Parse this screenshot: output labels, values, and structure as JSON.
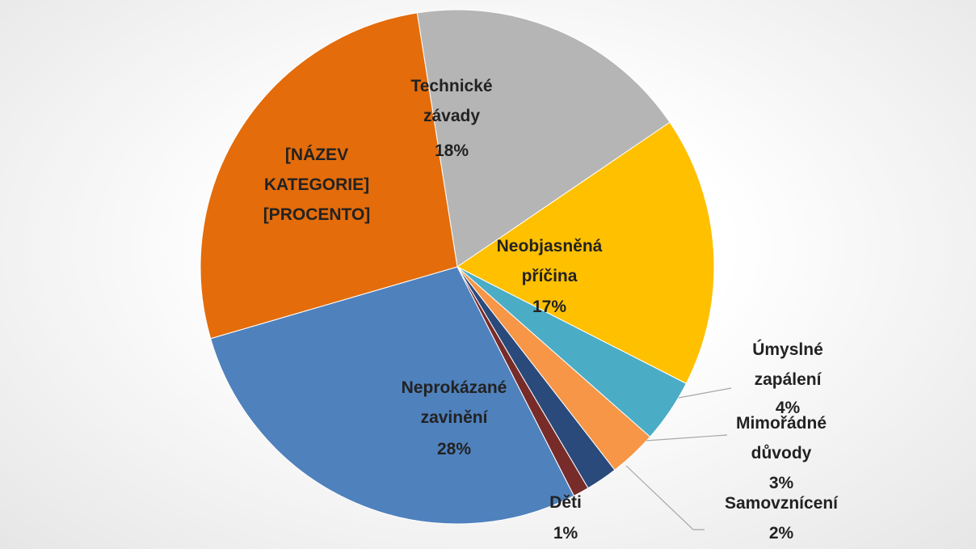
{
  "chart_data": {
    "type": "pie",
    "categories": [
      "Technické závady",
      "Neobjasněná příčina",
      "Úmyslné zapálení",
      "Mimořádné důvody",
      "Samovznícení",
      "Děti",
      "Neprokázané zavinění",
      "[NÁZEV KATEGORIE]"
    ],
    "values": [
      18,
      17,
      4,
      3,
      2,
      1,
      28,
      27
    ],
    "value_labels": [
      "18%",
      "17%",
      "4%",
      "3%",
      "2%",
      "1%",
      "28%",
      "[PROCENTO]"
    ],
    "colors": [
      "#b5b5b5",
      "#ffc000",
      "#4bacc6",
      "#f79646",
      "#2a4a7b",
      "#772c2a",
      "#4f81bd",
      "#e46c0a"
    ]
  }
}
